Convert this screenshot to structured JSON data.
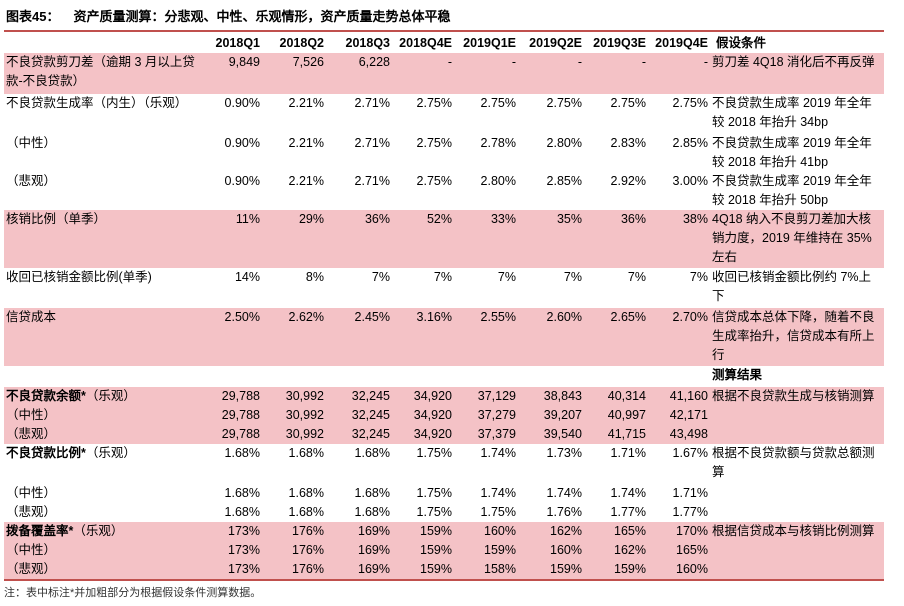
{
  "title": {
    "number": "图表45：",
    "text": "资产质量测算：分悲观、中性、乐观情形，资产质量走势总体平稳"
  },
  "columns": [
    "2018Q1",
    "2018Q2",
    "2018Q3",
    "2018Q4E",
    "2019Q1E",
    "2019Q2E",
    "2019Q3E",
    "2019Q4E"
  ],
  "assumption_header": "假设条件",
  "result_header": "测算结果",
  "rows": [
    {
      "label": "不良贷款剪刀差（逾期 3 月以上贷款-不良贷款）",
      "values": [
        "9,849",
        "7,526",
        "6,228",
        "-",
        "-",
        "-",
        "-",
        "-"
      ],
      "note": "剪刀差 4Q18 消化后不再反弹"
    },
    {
      "label": "不良贷款生成率（内生）（乐观）",
      "values": [
        "0.90%",
        "2.21%",
        "2.71%",
        "2.75%",
        "2.75%",
        "2.75%",
        "2.75%",
        "2.75%"
      ],
      "note": "不良贷款生成率 2019 年全年较 2018 年抬升 34bp"
    },
    {
      "label": "（中性）",
      "values": [
        "0.90%",
        "2.21%",
        "2.71%",
        "2.75%",
        "2.78%",
        "2.80%",
        "2.83%",
        "2.85%"
      ],
      "note": "不良贷款生成率 2019 年全年较 2018 年抬升 41bp"
    },
    {
      "label": "（悲观）",
      "values": [
        "0.90%",
        "2.21%",
        "2.71%",
        "2.75%",
        "2.80%",
        "2.85%",
        "2.92%",
        "3.00%"
      ],
      "note": "不良贷款生成率 2019 年全年较 2018 年抬升 50bp"
    },
    {
      "label": "核销比例（单季）",
      "values": [
        "11%",
        "29%",
        "36%",
        "52%",
        "33%",
        "35%",
        "36%",
        "38%"
      ],
      "note": "4Q18 纳入不良剪刀差加大核销力度，2019 年维持在 35%左右"
    },
    {
      "label": "收回已核销金额比例(单季)",
      "values": [
        "14%",
        "8%",
        "7%",
        "7%",
        "7%",
        "7%",
        "7%",
        "7%"
      ],
      "note": "收回已核销金额比例约 7%上下"
    },
    {
      "label": "信贷成本",
      "values": [
        "2.50%",
        "2.62%",
        "2.45%",
        "3.16%",
        "2.55%",
        "2.60%",
        "2.65%",
        "2.70%"
      ],
      "note": "信贷成本总体下降，随着不良生成率抬升，信贷成本有所上行"
    }
  ],
  "npl_balance": {
    "label_bold": "不良贷款余额*",
    "label_rest": "（乐观）",
    "rows": [
      {
        "label": "",
        "values": [
          "29,788",
          "30,992",
          "32,245",
          "34,920",
          "37,129",
          "38,843",
          "40,314",
          "41,160"
        ]
      },
      {
        "label": "（中性）",
        "values": [
          "29,788",
          "30,992",
          "32,245",
          "34,920",
          "37,279",
          "39,207",
          "40,997",
          "42,171"
        ]
      },
      {
        "label": "（悲观）",
        "values": [
          "29,788",
          "30,992",
          "32,245",
          "34,920",
          "37,379",
          "39,540",
          "41,715",
          "43,498"
        ]
      }
    ],
    "note": "根据不良贷款生成与核销测算"
  },
  "npl_ratio": {
    "label_bold": "不良贷款比例*",
    "label_rest": "（乐观）",
    "rows": [
      {
        "label": "",
        "values": [
          "1.68%",
          "1.68%",
          "1.68%",
          "1.75%",
          "1.74%",
          "1.73%",
          "1.71%",
          "1.67%"
        ]
      },
      {
        "label": "（中性）",
        "values": [
          "1.68%",
          "1.68%",
          "1.68%",
          "1.75%",
          "1.74%",
          "1.74%",
          "1.74%",
          "1.71%"
        ]
      },
      {
        "label": "（悲观）",
        "values": [
          "1.68%",
          "1.68%",
          "1.68%",
          "1.75%",
          "1.75%",
          "1.76%",
          "1.77%",
          "1.77%"
        ]
      }
    ],
    "note": "根据不良贷款额与贷款总额测算"
  },
  "coverage": {
    "label_bold": "拨备覆盖率*",
    "label_rest": "（乐观）",
    "rows": [
      {
        "label": "",
        "values": [
          "173%",
          "176%",
          "169%",
          "159%",
          "160%",
          "162%",
          "165%",
          "170%"
        ]
      },
      {
        "label": "（中性）",
        "values": [
          "173%",
          "176%",
          "169%",
          "159%",
          "159%",
          "160%",
          "162%",
          "165%"
        ]
      },
      {
        "label": "（悲观）",
        "values": [
          "173%",
          "176%",
          "169%",
          "159%",
          "158%",
          "159%",
          "159%",
          "160%"
        ]
      }
    ],
    "note": "根据信贷成本与核销比例测算"
  },
  "footer": "注：表中标注*并加粗部分为根据假设条件测算数据。"
}
